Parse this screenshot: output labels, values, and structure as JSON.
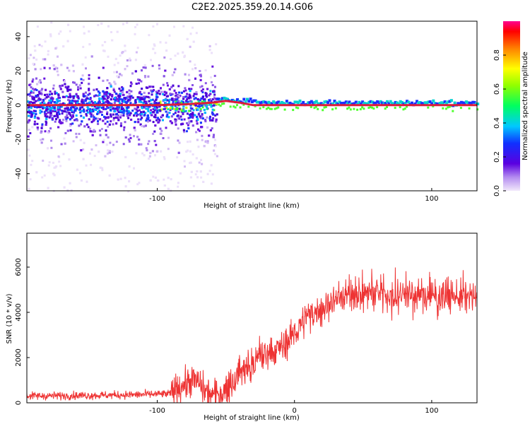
{
  "title": "C2E2.2025.359.20.14.G06",
  "colors": {
    "snr_line": "#ee3333",
    "frame": "#000000"
  },
  "chart_data": [
    {
      "type": "heatmap",
      "title": "C2E2.2025.359.20.14.G06",
      "xlabel": "Height of straight line (km)",
      "ylabel": "Frequency (Hz)",
      "xlim": [
        -195,
        133
      ],
      "ylim": [
        -50,
        49
      ],
      "xticks": [
        {
          "v": -100,
          "label": "-100"
        },
        {
          "v": 100,
          "label": "100"
        }
      ],
      "yticks": [
        {
          "v": 40,
          "label": "40"
        },
        {
          "v": 20,
          "label": "20"
        },
        {
          "v": 0,
          "label": "0"
        },
        {
          "v": -20,
          "label": "-20"
        },
        {
          "v": -40,
          "label": "-40"
        }
      ],
      "colorbar": {
        "label": "Normalized spectral amplitude",
        "range": [
          0,
          1
        ],
        "ticks": [
          {
            "v": 0.0,
            "label": "0.0"
          },
          {
            "v": 0.2,
            "label": "0.2"
          },
          {
            "v": 0.4,
            "label": "0.4"
          },
          {
            "v": 0.6,
            "label": "0.6"
          },
          {
            "v": 0.8,
            "label": "0.8"
          }
        ]
      },
      "ridge": {
        "description": "dominant spectral line",
        "points": [
          [
            -195,
            0
          ],
          [
            -100,
            0
          ],
          [
            -80,
            0.5
          ],
          [
            -60,
            1.5
          ],
          [
            -50,
            2.5
          ],
          [
            -40,
            1.5
          ],
          [
            -30,
            0
          ],
          [
            0,
            0
          ],
          [
            133,
            0
          ]
        ]
      }
    },
    {
      "type": "line",
      "xlabel": "Height of straight line (km)",
      "ylabel": "SNR (10 * v/v)",
      "xlim": [
        -195,
        133
      ],
      "ylim": [
        0,
        7500
      ],
      "xticks": [
        {
          "v": -100,
          "label": "-100"
        },
        {
          "v": 0,
          "label": "0"
        },
        {
          "v": 100,
          "label": "100"
        }
      ],
      "yticks": [
        {
          "v": 0,
          "label": "0"
        },
        {
          "v": 2000,
          "label": "2000"
        },
        {
          "v": 4000,
          "label": "4000"
        },
        {
          "v": 6000,
          "label": "6000"
        }
      ],
      "series": [
        {
          "name": "SNR",
          "x": [
            -195,
            -160,
            -120,
            -90,
            -85,
            -80,
            -75,
            -70,
            -65,
            -60,
            -55,
            -50,
            -45,
            -40,
            -35,
            -30,
            -25,
            -20,
            -15,
            -10,
            -5,
            0,
            5,
            10,
            15,
            20,
            25,
            30,
            35,
            40,
            45,
            50,
            55,
            60,
            65,
            70,
            75,
            80,
            85,
            90,
            95,
            100,
            110,
            120,
            133
          ],
          "values": [
            300,
            320,
            350,
            400,
            700,
            800,
            1000,
            900,
            500,
            350,
            350,
            600,
            1000,
            1300,
            1500,
            1800,
            2000,
            2100,
            2300,
            2500,
            2700,
            3100,
            3500,
            3800,
            4000,
            4200,
            4400,
            4600,
            4700,
            4800,
            4850,
            4800,
            4900,
            4850,
            4900,
            4800,
            4800,
            4850,
            4800,
            4700,
            4800,
            4750,
            4750,
            4700,
            4600
          ]
        }
      ]
    }
  ]
}
